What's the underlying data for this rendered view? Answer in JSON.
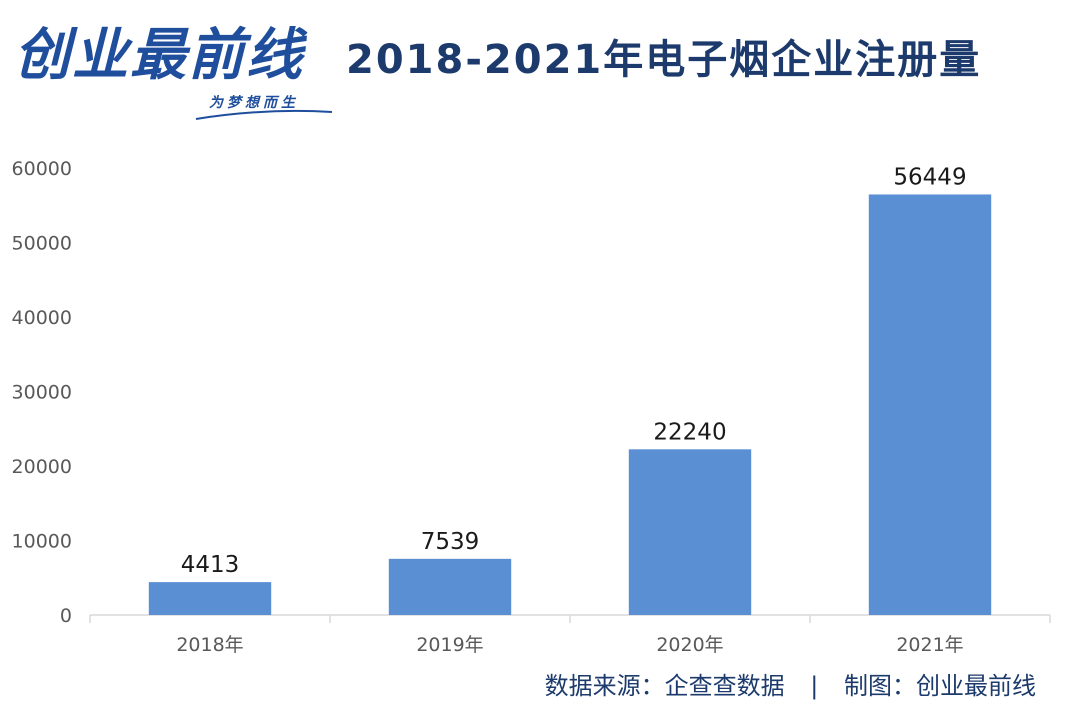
{
  "logo": {
    "text": "创业最前线",
    "slogan": "为梦想而生"
  },
  "chart_data": {
    "type": "bar",
    "title": "2018-2021年电子烟企业注册量",
    "categories": [
      "2018年",
      "2019年",
      "2020年",
      "2021年"
    ],
    "values": [
      4413,
      7539,
      22240,
      56449
    ],
    "yticks": [
      0,
      10000,
      20000,
      30000,
      40000,
      50000,
      60000
    ],
    "ylim": [
      0,
      60000
    ],
    "grid": false,
    "bar_color": "#5b8fd4"
  },
  "footer": {
    "source": "数据来源：企查查数据",
    "separator": "|",
    "credit": "制图：创业最前线"
  }
}
